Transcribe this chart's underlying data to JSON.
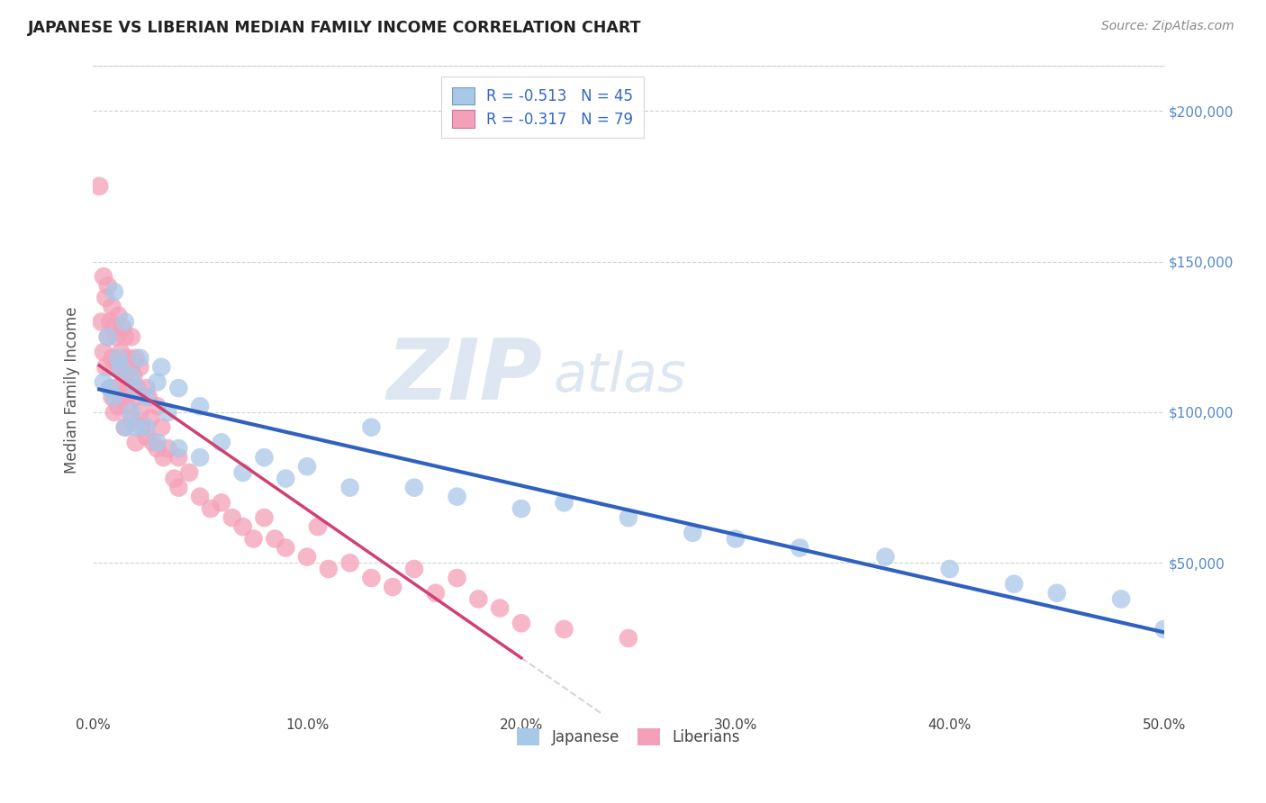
{
  "title": "JAPANESE VS LIBERIAN MEDIAN FAMILY INCOME CORRELATION CHART",
  "source_text": "Source: ZipAtlas.com",
  "ylabel": "Median Family Income",
  "xlim": [
    0.0,
    0.5
  ],
  "ylim": [
    0,
    215000
  ],
  "ytick_labels": [
    "$50,000",
    "$100,000",
    "$150,000",
    "$200,000"
  ],
  "ytick_values": [
    50000,
    100000,
    150000,
    200000
  ],
  "xtick_labels": [
    "0.0%",
    "10.0%",
    "20.0%",
    "30.0%",
    "40.0%",
    "50.0%"
  ],
  "xtick_values": [
    0.0,
    0.1,
    0.2,
    0.3,
    0.4,
    0.5
  ],
  "japanese_color": "#a8c8e8",
  "liberian_color": "#f4a0b8",
  "japanese_line_color": "#3060c0",
  "liberian_line_color": "#d04070",
  "watermark_zip": "ZIP",
  "watermark_atlas": "atlas",
  "background_color": "#ffffff",
  "japanese_scatter_x": [
    0.005,
    0.007,
    0.008,
    0.01,
    0.01,
    0.012,
    0.013,
    0.015,
    0.015,
    0.018,
    0.018,
    0.02,
    0.02,
    0.022,
    0.025,
    0.025,
    0.03,
    0.03,
    0.032,
    0.035,
    0.04,
    0.04,
    0.05,
    0.05,
    0.06,
    0.07,
    0.08,
    0.09,
    0.1,
    0.12,
    0.13,
    0.15,
    0.17,
    0.2,
    0.22,
    0.25,
    0.28,
    0.3,
    0.33,
    0.37,
    0.4,
    0.43,
    0.45,
    0.48,
    0.5
  ],
  "japanese_scatter_y": [
    110000,
    125000,
    108000,
    140000,
    105000,
    118000,
    115000,
    130000,
    95000,
    112000,
    100000,
    108000,
    95000,
    118000,
    105000,
    95000,
    110000,
    90000,
    115000,
    100000,
    108000,
    88000,
    102000,
    85000,
    90000,
    80000,
    85000,
    78000,
    82000,
    75000,
    95000,
    75000,
    72000,
    68000,
    70000,
    65000,
    60000,
    58000,
    55000,
    52000,
    48000,
    43000,
    40000,
    38000,
    28000
  ],
  "liberian_scatter_x": [
    0.003,
    0.004,
    0.005,
    0.005,
    0.006,
    0.006,
    0.007,
    0.007,
    0.008,
    0.008,
    0.009,
    0.009,
    0.009,
    0.01,
    0.01,
    0.01,
    0.011,
    0.011,
    0.012,
    0.012,
    0.012,
    0.013,
    0.013,
    0.014,
    0.014,
    0.015,
    0.015,
    0.015,
    0.016,
    0.016,
    0.017,
    0.018,
    0.018,
    0.018,
    0.019,
    0.02,
    0.02,
    0.02,
    0.021,
    0.022,
    0.022,
    0.023,
    0.025,
    0.025,
    0.026,
    0.027,
    0.028,
    0.03,
    0.03,
    0.032,
    0.033,
    0.035,
    0.038,
    0.04,
    0.04,
    0.045,
    0.05,
    0.055,
    0.06,
    0.065,
    0.07,
    0.075,
    0.08,
    0.085,
    0.09,
    0.1,
    0.105,
    0.11,
    0.12,
    0.13,
    0.14,
    0.15,
    0.16,
    0.17,
    0.18,
    0.19,
    0.2,
    0.22,
    0.25
  ],
  "liberian_scatter_y": [
    175000,
    130000,
    145000,
    120000,
    138000,
    115000,
    142000,
    125000,
    130000,
    108000,
    135000,
    118000,
    105000,
    128000,
    115000,
    100000,
    125000,
    108000,
    132000,
    115000,
    102000,
    120000,
    105000,
    128000,
    110000,
    125000,
    112000,
    95000,
    118000,
    102000,
    108000,
    125000,
    115000,
    98000,
    112000,
    118000,
    105000,
    90000,
    108000,
    115000,
    100000,
    95000,
    108000,
    92000,
    105000,
    98000,
    90000,
    102000,
    88000,
    95000,
    85000,
    88000,
    78000,
    85000,
    75000,
    80000,
    72000,
    68000,
    70000,
    65000,
    62000,
    58000,
    65000,
    58000,
    55000,
    52000,
    62000,
    48000,
    50000,
    45000,
    42000,
    48000,
    40000,
    45000,
    38000,
    35000,
    30000,
    28000,
    25000
  ]
}
